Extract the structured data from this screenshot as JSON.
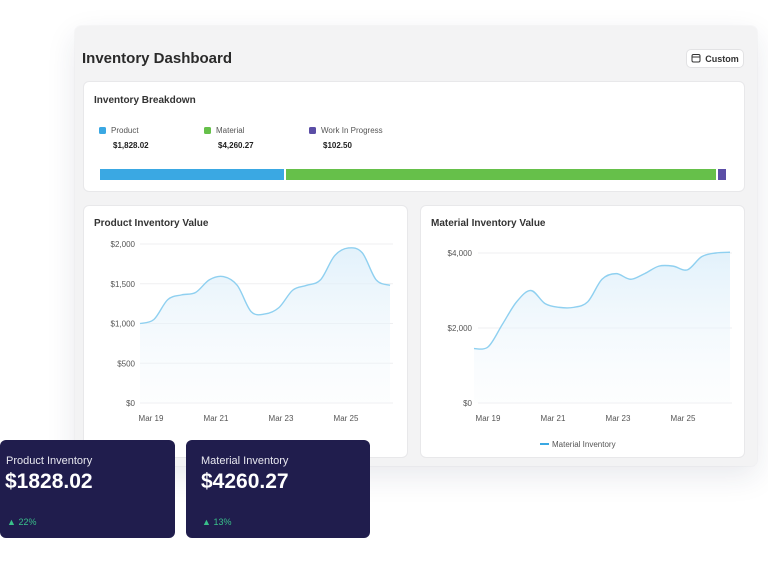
{
  "dashboard": {
    "title": "Inventory Dashboard",
    "custom_button": "Custom"
  },
  "breakdown": {
    "title": "Inventory Breakdown",
    "items": [
      {
        "label": "Product",
        "value": "$1,828.02",
        "color": "#3aa8e3"
      },
      {
        "label": "Material",
        "value": "$4,260.27",
        "color": "#66c04a"
      },
      {
        "label": "Work In Progress",
        "value": "$102.50",
        "color": "#5b4ea6"
      }
    ],
    "shares": [
      0.2962,
      0.6872,
      0.0166
    ]
  },
  "chart_data": [
    {
      "type": "area",
      "title": "Product Inventory Value",
      "categories": [
        "Mar 19",
        "Mar 21",
        "Mar 23",
        "Mar 25"
      ],
      "x": [
        0,
        1,
        2,
        3,
        4,
        5,
        6,
        7,
        8,
        9,
        10,
        11,
        12,
        13,
        14,
        15,
        16,
        17,
        18
      ],
      "series": [
        {
          "values": [
            1000,
            1050,
            1300,
            1360,
            1390,
            1550,
            1590,
            1480,
            1150,
            1120,
            1200,
            1420,
            1480,
            1550,
            1850,
            1950,
            1890,
            1550,
            1480
          ],
          "color": "#8fd0f0"
        }
      ],
      "y_ticks": [
        "$0",
        "$500",
        "$1,000",
        "$1,500",
        "$2,000"
      ],
      "ylim": [
        0,
        2000
      ],
      "grid": true
    },
    {
      "type": "area",
      "title": "Material Inventory Value",
      "categories": [
        "Mar 19",
        "Mar 21",
        "Mar 23",
        "Mar 25"
      ],
      "x": [
        0,
        1,
        2,
        3,
        4,
        5,
        6,
        7,
        8,
        9,
        10,
        11,
        12,
        13,
        14,
        15,
        16,
        17,
        18
      ],
      "series": [
        {
          "name": "Material Inventory",
          "values": [
            1450,
            1500,
            2100,
            2700,
            3000,
            2650,
            2550,
            2550,
            2700,
            3300,
            3450,
            3300,
            3450,
            3650,
            3650,
            3550,
            3900,
            4000,
            4020
          ],
          "color": "#8fd0f0"
        }
      ],
      "y_ticks": [
        "$0",
        "$2,000",
        "$4,000"
      ],
      "ylim": [
        0,
        4000
      ],
      "grid": true,
      "legend": "bottom"
    }
  ],
  "stats": [
    {
      "label": "Product Inventory",
      "value": "$1828.02",
      "change": "22%"
    },
    {
      "label": "Material Inventory",
      "value": "$4260.27",
      "change": "13%"
    }
  ]
}
